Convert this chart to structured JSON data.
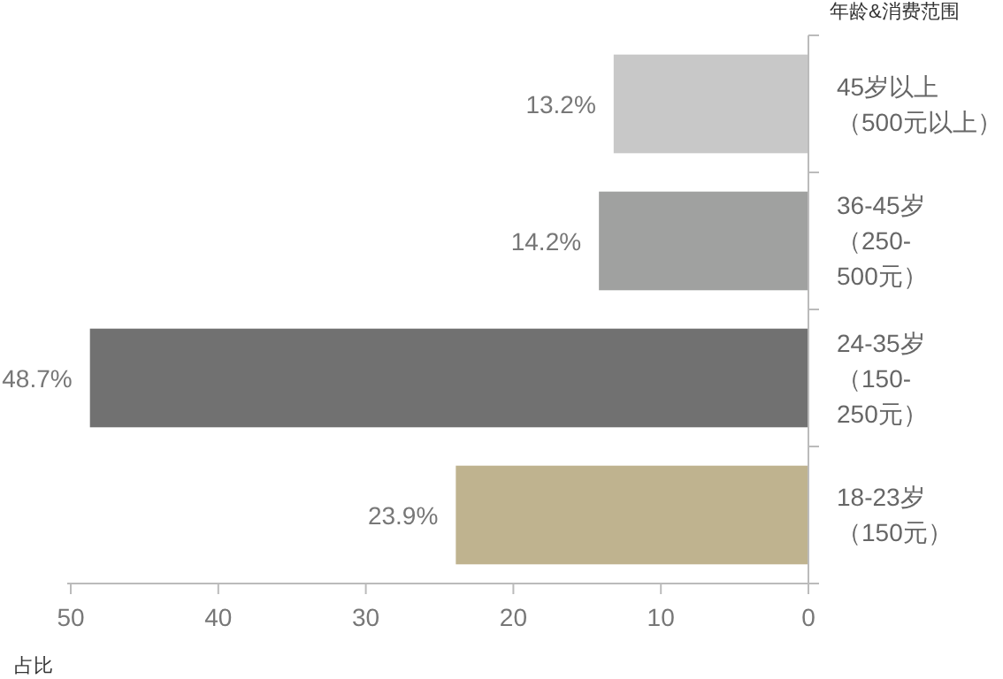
{
  "chart_data": {
    "type": "bar",
    "orientation": "horizontal",
    "ylabel": "年龄&消费范围",
    "xlabel": "占比",
    "categories": [
      "45岁以上（500元以上）",
      "36-45岁（250-500元）",
      "24-35岁（150-250元）",
      "18-23岁（150元）"
    ],
    "values": [
      13.2,
      14.2,
      48.7,
      23.9
    ],
    "colors": [
      "#c8c8c8",
      "#a0a1a0",
      "#717171",
      "#bfb38f"
    ],
    "value_labels": [
      "13.2%",
      "14.2%",
      "48.7%",
      "23.9%"
    ],
    "xlim": [
      50,
      0
    ],
    "xticks": [
      50,
      40,
      30,
      20,
      10,
      0
    ],
    "grid": false
  }
}
